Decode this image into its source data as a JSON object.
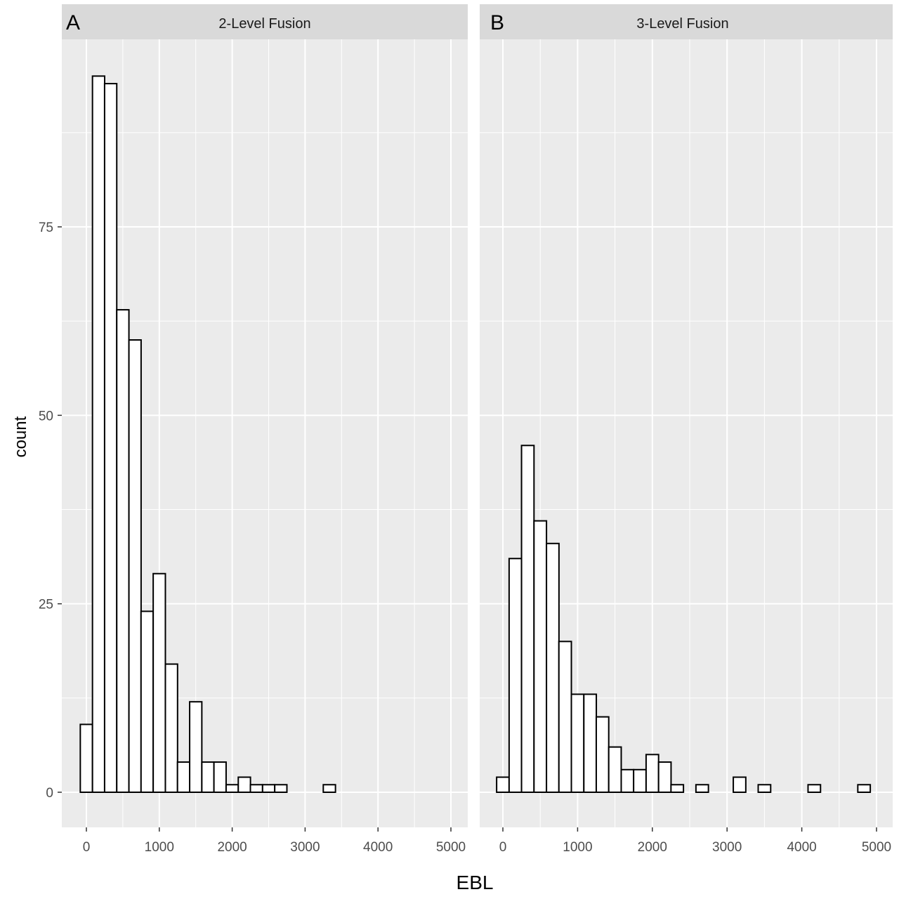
{
  "ylabel": "count",
  "xlabel": "EBL",
  "panels": [
    {
      "letter": "A",
      "strip_title": "2-Level Fusion"
    },
    {
      "letter": "B",
      "strip_title": "3-Level Fusion"
    }
  ],
  "x_ticks": [
    "0",
    "1000",
    "2000",
    "3000",
    "4000",
    "5000"
  ],
  "y_ticks": [
    "0",
    "25",
    "50",
    "75"
  ],
  "colors": {
    "panel_bg": "#ebebeb",
    "strip_bg": "#d9d9d9",
    "grid": "#ffffff",
    "bar_fill": "#ffffff",
    "bar_stroke": "#000000"
  },
  "chart_data": [
    {
      "type": "bar",
      "title": "2-Level Fusion",
      "xlabel": "EBL",
      "ylabel": "count",
      "bin_width": 167,
      "xlim": [
        -250,
        5200
      ],
      "ylim": [
        -5,
        100
      ],
      "x": [
        0,
        167,
        333,
        500,
        667,
        833,
        1000,
        1167,
        1333,
        1500,
        1667,
        1833,
        2000,
        2167,
        2333,
        2500,
        2667,
        2833,
        3000,
        3167,
        3333,
        3500,
        3667,
        3833,
        4000,
        4167,
        4333,
        4500,
        4667,
        4833
      ],
      "values": [
        9,
        95,
        94,
        64,
        60,
        24,
        29,
        17,
        4,
        12,
        4,
        4,
        1,
        2,
        1,
        1,
        1,
        0,
        0,
        0,
        1,
        0,
        0,
        0,
        0,
        0,
        0,
        0,
        0,
        0
      ]
    },
    {
      "type": "bar",
      "title": "3-Level Fusion",
      "xlabel": "EBL",
      "ylabel": "count",
      "bin_width": 167,
      "xlim": [
        -250,
        5200
      ],
      "ylim": [
        -5,
        100
      ],
      "x": [
        0,
        167,
        333,
        500,
        667,
        833,
        1000,
        1167,
        1333,
        1500,
        1667,
        1833,
        2000,
        2167,
        2333,
        2500,
        2667,
        2833,
        3000,
        3167,
        3333,
        3500,
        3667,
        3833,
        4000,
        4167,
        4333,
        4500,
        4667,
        4833
      ],
      "values": [
        2,
        31,
        46,
        36,
        33,
        20,
        13,
        13,
        10,
        6,
        3,
        3,
        5,
        4,
        1,
        0,
        1,
        0,
        0,
        2,
        0,
        1,
        0,
        0,
        0,
        1,
        0,
        0,
        0,
        1
      ]
    }
  ]
}
